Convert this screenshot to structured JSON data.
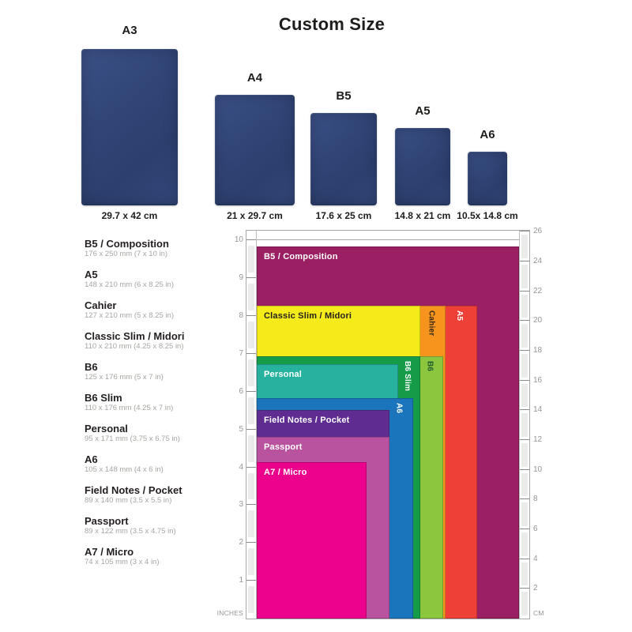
{
  "title": "Custom Size",
  "notebooks": [
    {
      "label": "A3",
      "size": "29.7 x 42 cm"
    },
    {
      "label": "A4",
      "size": "21 x 29.7 cm"
    },
    {
      "label": "B5",
      "size": "17.6 x 25 cm"
    },
    {
      "label": "A5",
      "size": "14.8 x 21 cm"
    },
    {
      "label": "A6",
      "size": "10.5x 14.8 cm"
    }
  ],
  "notebook_color": "#2f4276",
  "size_list": [
    {
      "name": "B5 / Composition",
      "dims": "176 x 250 mm (7 x 10 in)"
    },
    {
      "name": "A5",
      "dims": "148 x 210 mm (6 x 8.25 in)"
    },
    {
      "name": "Cahier",
      "dims": "127 x 210 mm (5 x 8.25 in)"
    },
    {
      "name": "Classic Slim / Midori",
      "dims": "110 x 210 mm (4.25 x 8.25 in)"
    },
    {
      "name": "B6",
      "dims": "125 x 176 mm (5 x 7 in)"
    },
    {
      "name": "B6 Slim",
      "dims": "110 x 176 mm (4.25 x 7 in)"
    },
    {
      "name": "Personal",
      "dims": "95 x 171 mm (3.75 x 6.75 in)"
    },
    {
      "name": "A6",
      "dims": "105 x 148 mm (4 x 6 in)"
    },
    {
      "name": "Field Notes / Pocket",
      "dims": "89 x 140 mm (3.5 x 5.5 in)"
    },
    {
      "name": "Passport",
      "dims": "89 x 122 mm (3.5 x 4.75 in)"
    },
    {
      "name": "A7 / Micro",
      "dims": "74 x 105 mm (3 x 4 in)"
    }
  ],
  "chart_data": {
    "type": "area",
    "title": "Notebook size comparison (nested rectangles, bottom-left aligned, drawn largest to smallest)",
    "x_unit": "mm",
    "rulers": {
      "left": {
        "unit": "INCHES",
        "ticks": [
          1,
          2,
          3,
          4,
          5,
          6,
          7,
          8,
          9,
          10
        ],
        "range": [
          0,
          10.3
        ]
      },
      "right": {
        "unit": "CM",
        "ticks": [
          2,
          4,
          6,
          8,
          10,
          12,
          14,
          16,
          18,
          20,
          22,
          24,
          26
        ],
        "range": [
          0,
          26.1
        ]
      }
    },
    "gridline_at_in": 10,
    "sizes": [
      {
        "label": "B5 / Composition",
        "w_mm": 176,
        "h_mm": 250,
        "color": "#9A2063",
        "label_orient": "h",
        "label_color": "#ffffff"
      },
      {
        "label": "A5",
        "w_mm": 148,
        "h_mm": 210,
        "color": "#EE4036",
        "label_orient": "v",
        "label_color": "#ffffff",
        "strip_center_mm": 137.5
      },
      {
        "label": "Cahier",
        "w_mm": 127,
        "h_mm": 210,
        "color": "#F7941E",
        "label_orient": "v",
        "label_color": "#3a2a16",
        "strip_center_mm": 118.5
      },
      {
        "label": "Classic Slim / Midori",
        "w_mm": 110,
        "h_mm": 210,
        "color": "#F5EB1A",
        "label_orient": "h",
        "label_color": "#231f20"
      },
      {
        "label": "B6",
        "w_mm": 125,
        "h_mm": 176,
        "color": "#8CC63F",
        "label_orient": "v",
        "label_color": "#1d5c2f",
        "strip_center_mm": 117.5
      },
      {
        "label": "B6 Slim",
        "w_mm": 110,
        "h_mm": 176,
        "color": "#169C49",
        "label_orient": "v",
        "label_color": "#ffffff",
        "strip_center_mm": 102.5
      },
      {
        "label": "Personal",
        "w_mm": 95,
        "h_mm": 171,
        "color": "#27B2A0",
        "label_orient": "h",
        "label_color": "#ffffff"
      },
      {
        "label": "A6",
        "w_mm": 105,
        "h_mm": 148,
        "color": "#1B75BC",
        "label_orient": "v",
        "label_color": "#ffffff",
        "strip_center_mm": 97
      },
      {
        "label": "Field Notes / Pocket",
        "w_mm": 89,
        "h_mm": 140,
        "color": "#5F2D91",
        "label_orient": "h",
        "label_color": "#ffffff"
      },
      {
        "label": "Passport",
        "w_mm": 89,
        "h_mm": 122,
        "color": "#B9529F",
        "label_orient": "h",
        "label_color": "#ffffff"
      },
      {
        "label": "A7 / Micro",
        "w_mm": 74,
        "h_mm": 105,
        "color": "#EC018C",
        "label_orient": "h",
        "label_color": "#ffffff"
      }
    ]
  }
}
